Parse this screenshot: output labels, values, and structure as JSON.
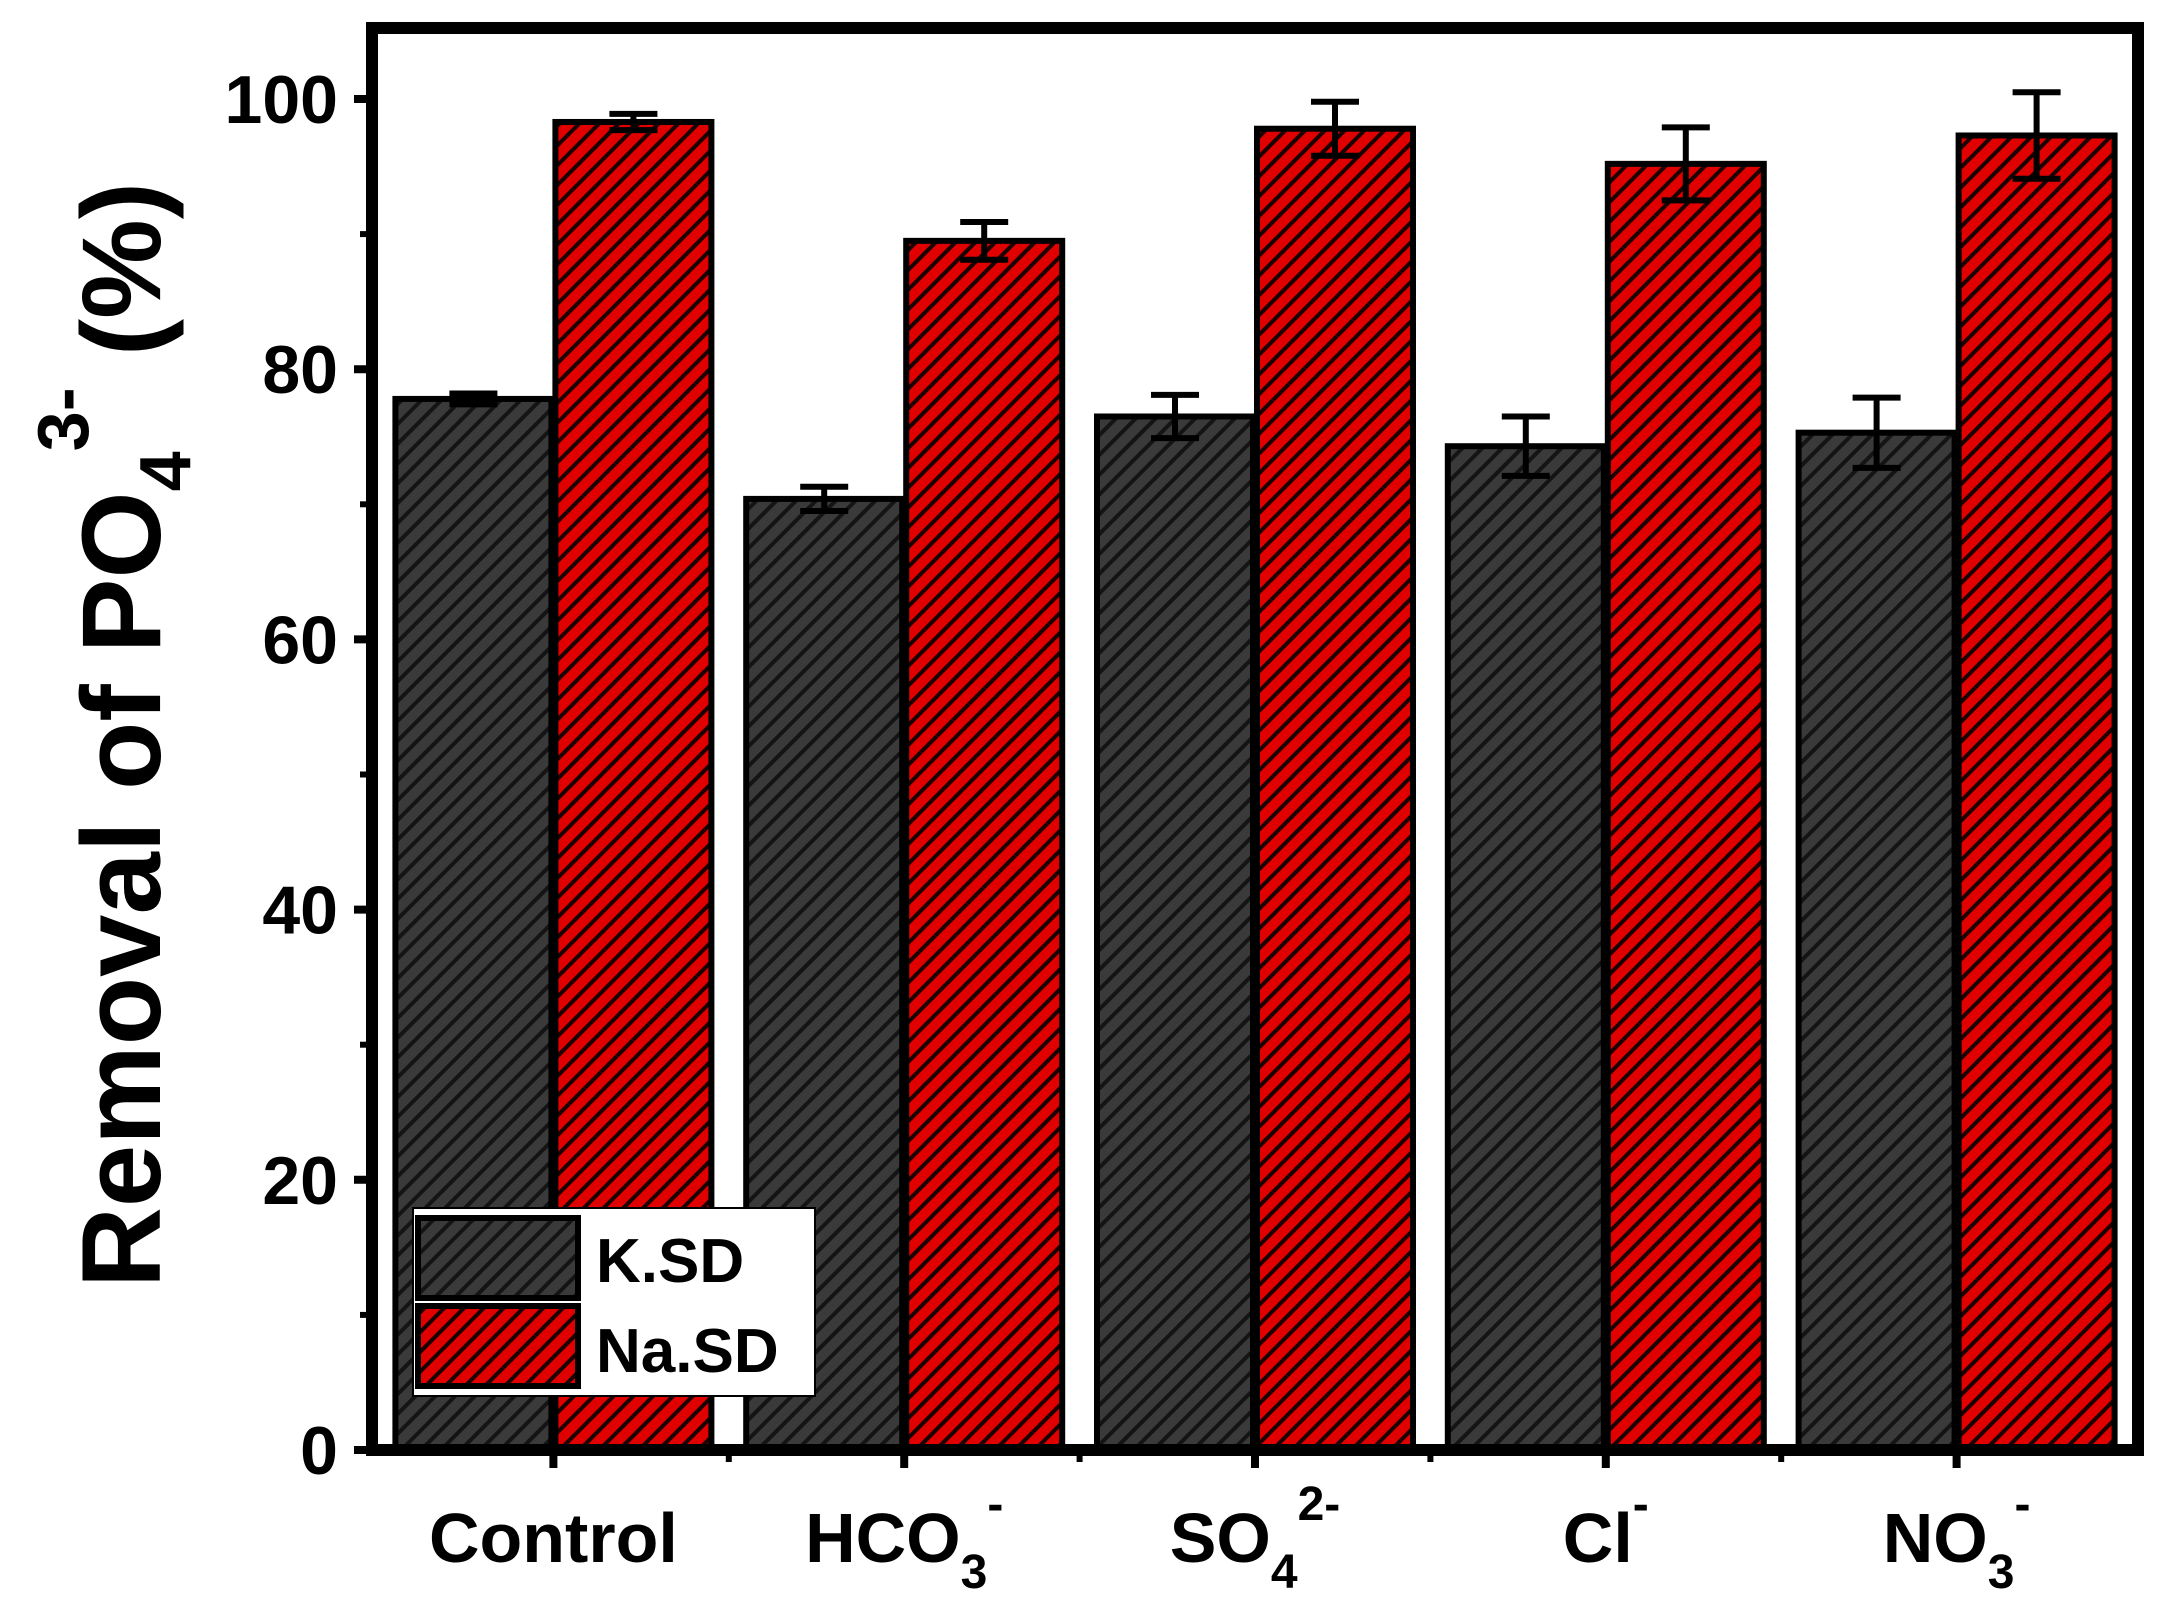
{
  "chart_data": {
    "type": "bar",
    "title": "",
    "xlabel": "",
    "ylabel": "Removal of PO",
    "ylabel_sub": "4",
    "ylabel_sup": "3-",
    "ylabel_suffix": " (%)",
    "ylim": [
      0,
      105
    ],
    "yticks": [
      0,
      20,
      40,
      60,
      80,
      100
    ],
    "ytick_labels": [
      "0",
      "20",
      "40",
      "60",
      "80",
      "100"
    ],
    "categories": [
      {
        "main": "Control",
        "sub": "",
        "sup": ""
      },
      {
        "main": "HCO",
        "sub": "3",
        "sup": "-"
      },
      {
        "main": "SO",
        "sub": "4",
        "sup": "2-"
      },
      {
        "main": "Cl",
        "sub": "",
        "sup": "-"
      },
      {
        "main": "NO",
        "sub": "3",
        "sup": "-"
      }
    ],
    "series": [
      {
        "name": "K.SD",
        "color": "#3a3a3a",
        "values": [
          77.8,
          70.4,
          76.5,
          74.3,
          75.3
        ],
        "errors": [
          0.4,
          0.9,
          1.6,
          2.2,
          2.6
        ]
      },
      {
        "name": "Na.SD",
        "color": "#e00000",
        "values": [
          98.3,
          89.5,
          97.8,
          95.2,
          97.3
        ],
        "errors": [
          0.6,
          1.4,
          2.0,
          2.7,
          3.2
        ]
      }
    ],
    "legend_position": "bottom-left",
    "grid": false
  }
}
